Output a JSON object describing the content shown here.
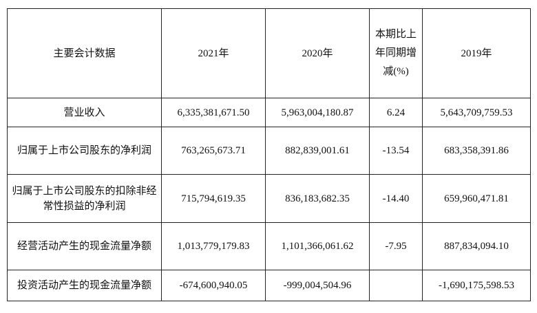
{
  "table": {
    "headers": {
      "item": "主要会计数据",
      "y2021": "2021年",
      "y2020": "2020年",
      "change": "本期比上年同期增减(%)",
      "y2019": "2019年"
    },
    "rows": [
      {
        "label": "营业收入",
        "v2021": "6,335,381,671.50",
        "v2020": "5,963,004,180.87",
        "change": "6.24",
        "v2019": "5,643,709,759.53"
      },
      {
        "label": "归属于上市公司股东的净利润",
        "v2021": "763,265,673.71",
        "v2020": "882,839,001.61",
        "change": "-13.54",
        "v2019": "683,358,391.86"
      },
      {
        "label": "归属于上市公司股东的扣除非经常性损益的净利润",
        "v2021": "715,794,619.35",
        "v2020": "836,183,682.35",
        "change": "-14.40",
        "v2019": "659,960,471.81"
      },
      {
        "label": "经营活动产生的现金流量净额",
        "v2021": "1,013,779,179.83",
        "v2020": "1,101,366,061.62",
        "change": "-7.95",
        "v2019": "887,834,094.10"
      },
      {
        "label": "投资活动产生的现金流量净额",
        "v2021": "-674,600,940.05",
        "v2020": "-999,004,504.96",
        "change": "",
        "v2019": "-1,690,175,598.53"
      }
    ]
  }
}
